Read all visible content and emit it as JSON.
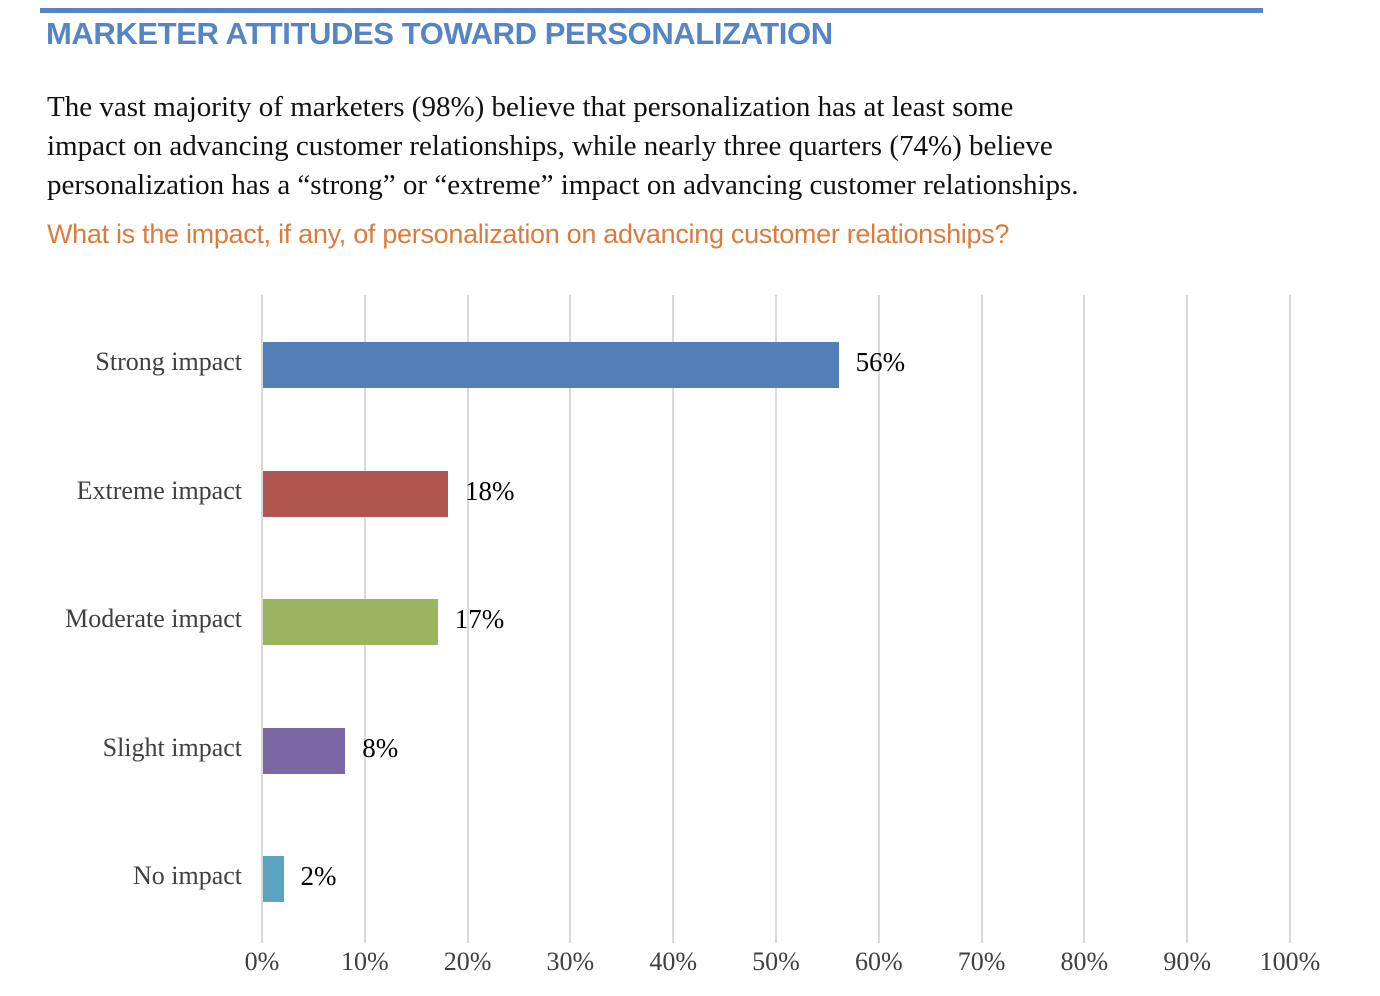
{
  "header": {
    "title": "MARKETER ATTITUDES TOWARD PERSONALIZATION",
    "accent_color": "#5585C5"
  },
  "intro": {
    "text": "The vast majority of marketers (98%) believe that personalization has at least some\nimpact on advancing customer relationships, while nearly three quarters (74%) believe\npersonalization has a “strong” or “extreme” impact on advancing customer relationships."
  },
  "question": {
    "text": "What is the impact, if any, of personalization on advancing customer relationships?",
    "color": "#DC7B3B"
  },
  "chart_data": {
    "type": "bar",
    "orientation": "horizontal",
    "title": "",
    "xlabel": "",
    "ylabel": "",
    "categories": [
      "Strong impact",
      "Extreme impact",
      "Moderate impact",
      "Slight impact",
      "No impact"
    ],
    "values": [
      56,
      18,
      17,
      8,
      2
    ],
    "value_labels": [
      "56%",
      "18%",
      "17%",
      "8%",
      "2%"
    ],
    "bar_colors": [
      "#537FB8",
      "#B1564F",
      "#9CB45E",
      "#7867A3",
      "#5AA4C0"
    ],
    "x_ticks": [
      "0%",
      "10%",
      "20%",
      "30%",
      "40%",
      "50%",
      "60%",
      "70%",
      "80%",
      "90%",
      "100%"
    ],
    "xlim": [
      0,
      100
    ],
    "grid": true,
    "gridline_color": "#D9D9D9",
    "label_color": "#3F3F3F",
    "value_label_color": "#000000",
    "legend": false
  }
}
